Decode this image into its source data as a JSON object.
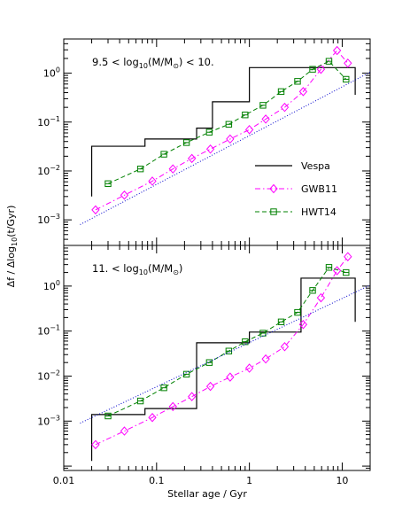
{
  "chart_data": {
    "type": "line",
    "xlabel": "Stellar age / Gyr",
    "ylabel_parts": [
      "Δf",
      " / ",
      "Δlog",
      "10",
      "(t/Gyr)"
    ],
    "x_scale": "log",
    "y_scale": "log",
    "xlim": [
      0.01,
      20
    ],
    "x_ticks": [
      {
        "value": 0.01,
        "label": "0.01"
      },
      {
        "value": 0.1,
        "label": "0.1"
      },
      {
        "value": 1,
        "label": "1"
      },
      {
        "value": 10,
        "label": "10"
      }
    ],
    "legend": {
      "placement": "right",
      "entries": [
        {
          "name": "Vespa",
          "color": "#000000",
          "dash": "solid",
          "marker": "none"
        },
        {
          "name": "GWB11",
          "color": "#ff00ff",
          "dash": "dashdot",
          "marker": "diamond"
        },
        {
          "name": "HWT14",
          "color": "#008000",
          "dash": "dash",
          "marker": "square"
        }
      ]
    },
    "extra_line": {
      "color": "#0000cc",
      "dash": "dotted"
    },
    "panels": [
      {
        "annotation": {
          "lead": "9.5   < log",
          "sub": "10",
          "mid": "(M/M",
          "sun": "⊙",
          "tail": ") < 10."
        },
        "ylim": [
          0.0003,
          5
        ],
        "y_ticks": [
          {
            "value": 0.001,
            "base": "10",
            "exp": "−3"
          },
          {
            "value": 0.01,
            "base": "10",
            "exp": "−2"
          },
          {
            "value": 0.1,
            "base": "10",
            "exp": "−1"
          },
          {
            "value": 1,
            "base": "10",
            "exp": "0"
          }
        ],
        "series": [
          {
            "name": "Vespa",
            "style": "step",
            "x": [
              0.02,
              0.02,
              0.075,
              0.075,
              0.27,
              0.27,
              0.4,
              0.4,
              1.0,
              1.0,
              3.6,
              3.6,
              13.8,
              13.8
            ],
            "y": [
              0.003,
              0.032,
              0.032,
              0.045,
              0.045,
              0.075,
              0.075,
              0.26,
              0.26,
              1.3,
              1.3,
              1.3,
              1.3,
              0.36
            ]
          },
          {
            "name": "GWB11",
            "style": "markers",
            "x": [
              0.022,
              0.045,
              0.09,
              0.15,
              0.24,
              0.38,
              0.62,
              1.0,
              1.5,
              2.4,
              3.8,
              5.9,
              8.8,
              11.5
            ],
            "y": [
              0.0016,
              0.0032,
              0.0062,
              0.011,
              0.018,
              0.028,
              0.045,
              0.07,
              0.115,
              0.2,
              0.42,
              1.2,
              2.9,
              1.6
            ]
          },
          {
            "name": "HWT14",
            "style": "markers",
            "x": [
              0.03,
              0.067,
              0.12,
              0.21,
              0.37,
              0.6,
              0.9,
              1.4,
              2.2,
              3.3,
              4.8,
              7.2,
              11.0
            ],
            "y": [
              0.0055,
              0.011,
              0.022,
              0.038,
              0.062,
              0.09,
              0.14,
              0.22,
              0.42,
              0.68,
              1.2,
              1.75,
              0.75
            ]
          },
          {
            "name": "",
            "style": "dotted-line",
            "x": [
              0.015,
              20
            ],
            "y": [
              0.0008,
              1.05
            ]
          }
        ]
      },
      {
        "annotation": {
          "lead": "11.   < log",
          "sub": "10",
          "mid": "(M/M",
          "sun": "⊙",
          "tail": ")"
        },
        "ylim": [
          8e-05,
          8
        ],
        "y_ticks": [
          {
            "value": 0.001,
            "base": "10",
            "exp": "−3"
          },
          {
            "value": 0.01,
            "base": "10",
            "exp": "−2"
          },
          {
            "value": 0.1,
            "base": "10",
            "exp": "−1"
          },
          {
            "value": 1,
            "base": "10",
            "exp": "0"
          }
        ],
        "series": [
          {
            "name": "Vespa",
            "style": "step",
            "x": [
              0.02,
              0.02,
              0.075,
              0.075,
              0.27,
              0.27,
              1.0,
              1.0,
              3.6,
              3.6,
              13.8,
              13.8
            ],
            "y": [
              0.00013,
              0.0014,
              0.0014,
              0.0019,
              0.0019,
              0.055,
              0.055,
              0.095,
              0.095,
              1.5,
              1.5,
              0.16
            ]
          },
          {
            "name": "GWB11",
            "style": "markers",
            "x": [
              0.022,
              0.045,
              0.09,
              0.15,
              0.24,
              0.38,
              0.62,
              1.0,
              1.5,
              2.4,
              3.8,
              5.9,
              8.8,
              11.5
            ],
            "y": [
              0.0003,
              0.0006,
              0.0012,
              0.0021,
              0.0035,
              0.0059,
              0.0095,
              0.015,
              0.024,
              0.045,
              0.14,
              0.55,
              2.2,
              4.5
            ]
          },
          {
            "name": "HWT14",
            "style": "markers",
            "x": [
              0.03,
              0.067,
              0.12,
              0.21,
              0.37,
              0.6,
              0.9,
              1.4,
              2.2,
              3.3,
              4.8,
              7.2,
              11.0
            ],
            "y": [
              0.0013,
              0.0028,
              0.0055,
              0.011,
              0.02,
              0.036,
              0.058,
              0.09,
              0.16,
              0.26,
              0.8,
              2.6,
              2.0
            ]
          },
          {
            "name": "",
            "style": "dotted-line",
            "x": [
              0.015,
              20
            ],
            "y": [
              0.0009,
              1.05
            ]
          }
        ]
      }
    ]
  }
}
